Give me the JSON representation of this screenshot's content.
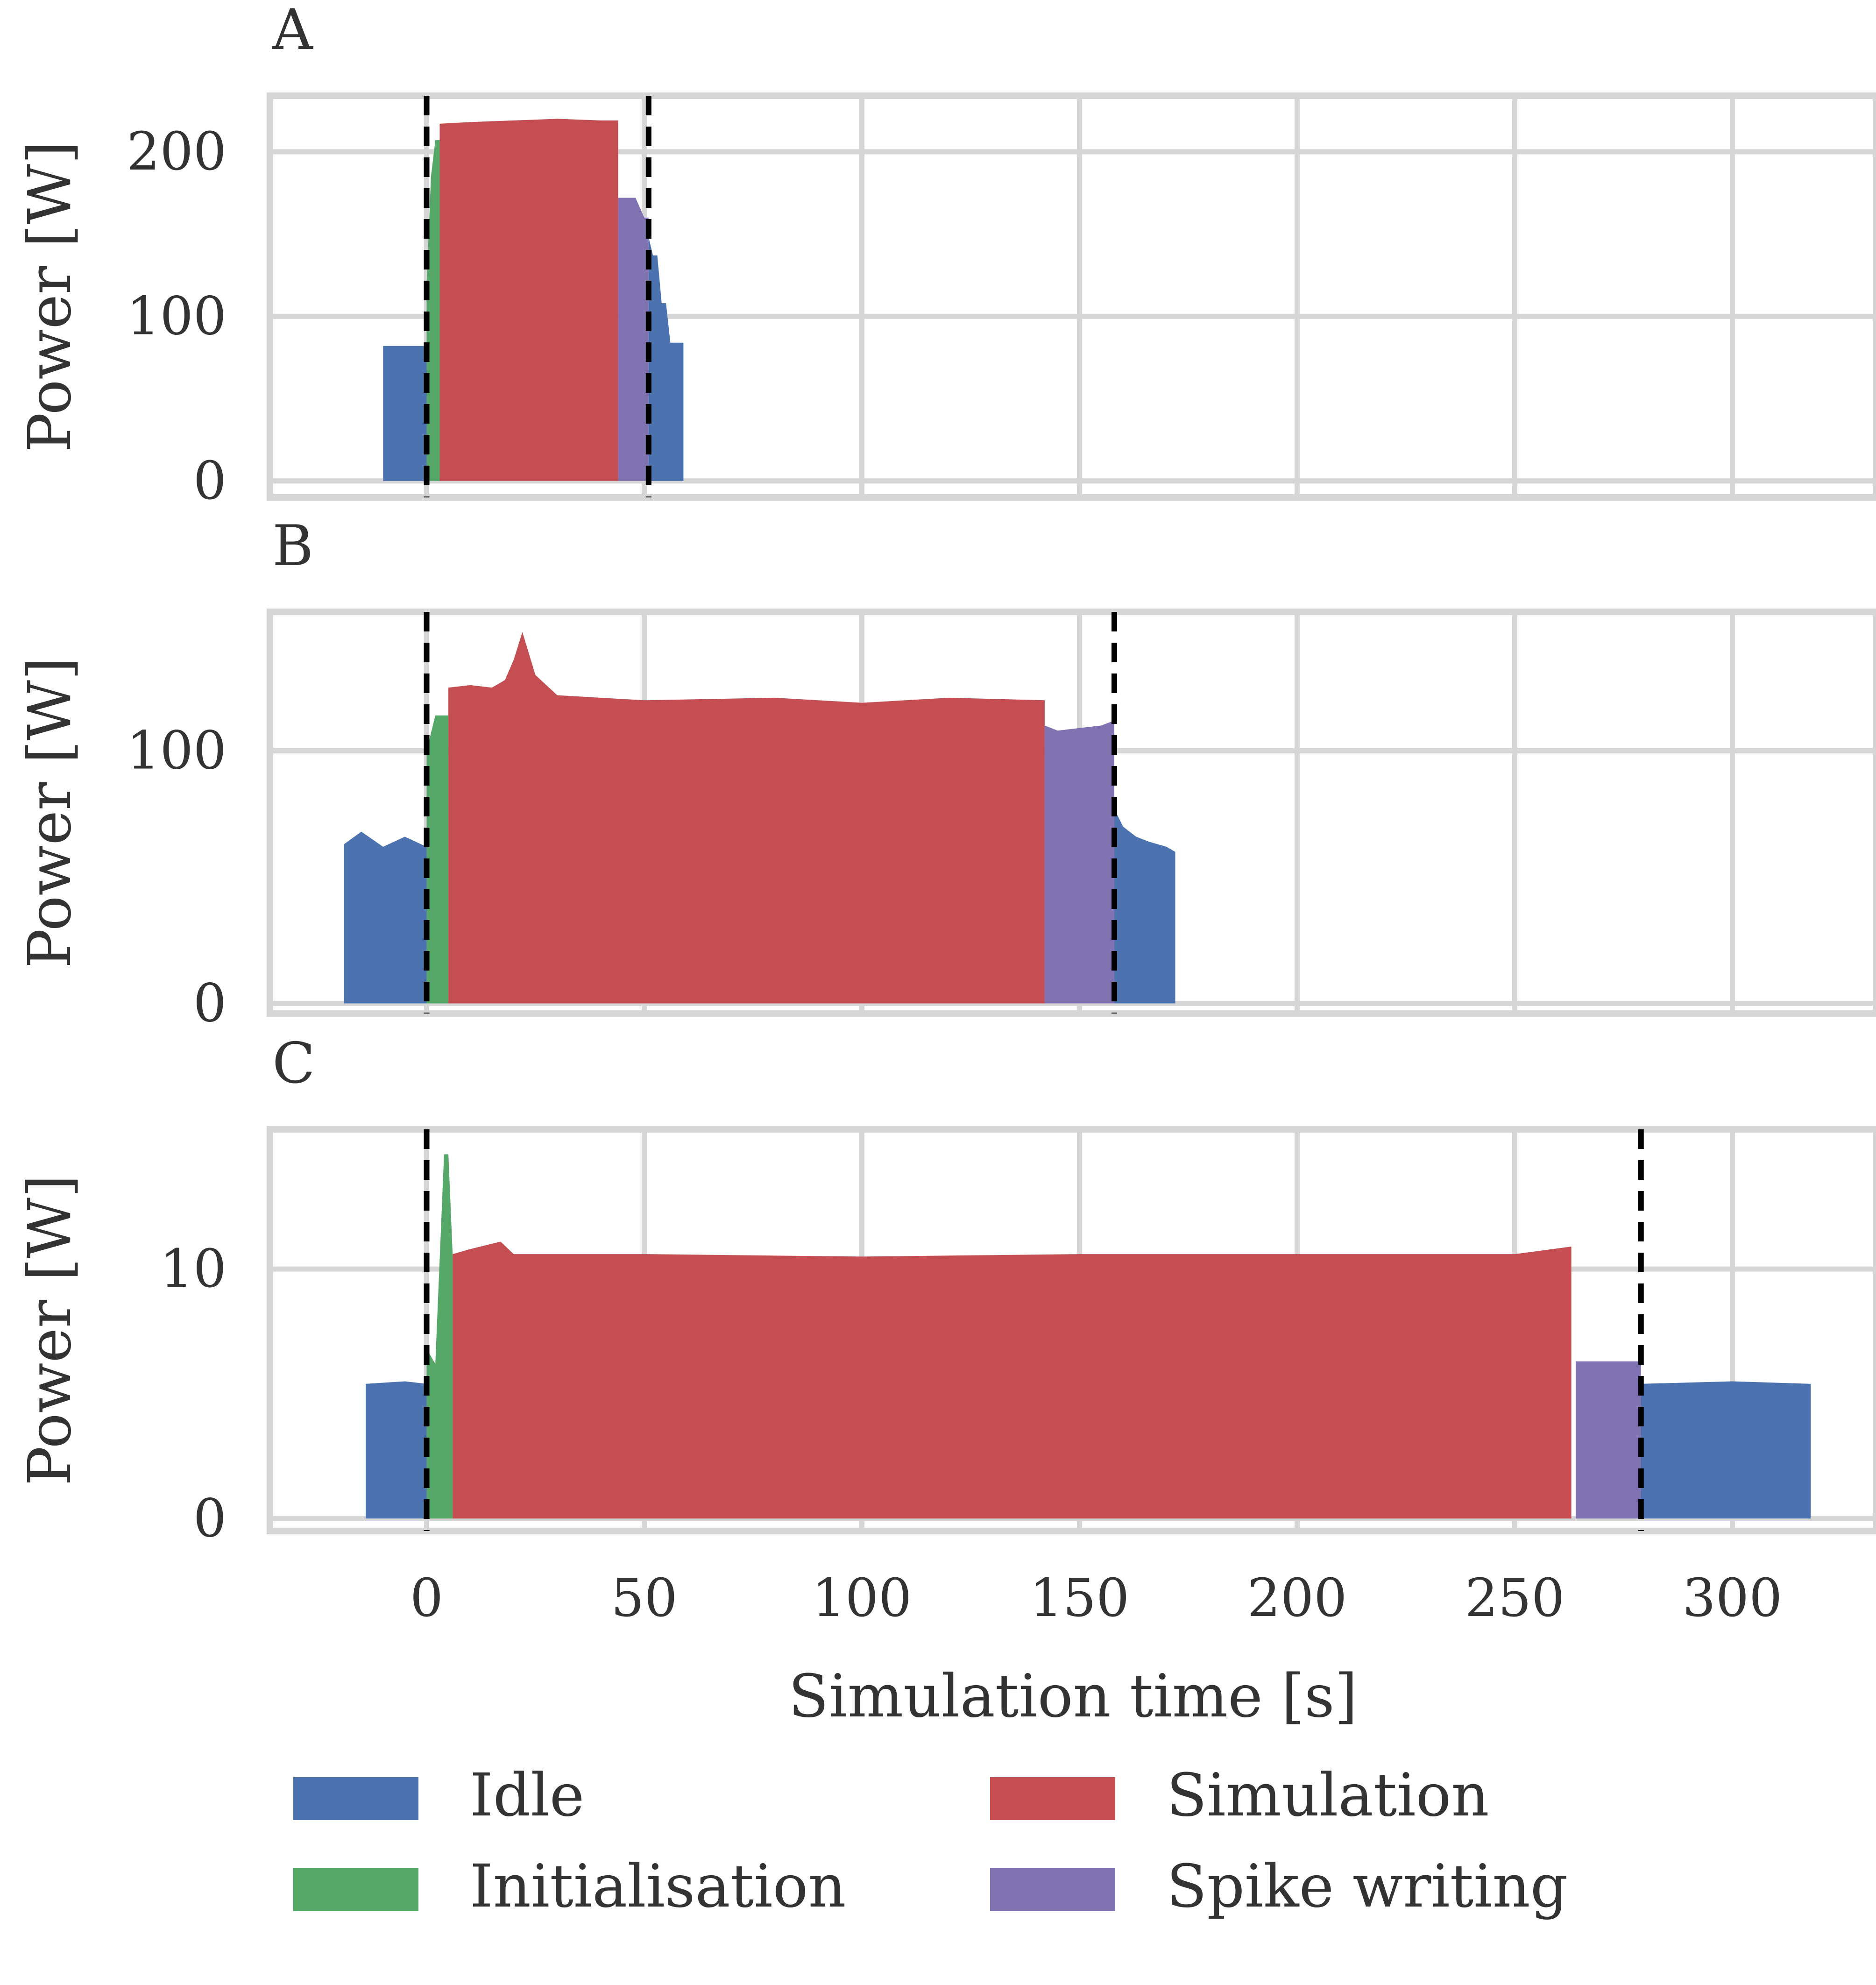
{
  "chart_data": {
    "type": "area",
    "xlabel": "Simulation time [s]",
    "ylabel": "Power [W]",
    "xlim": [
      -36,
      333
    ],
    "xticks": [
      0,
      50,
      100,
      150,
      200,
      250,
      300
    ],
    "grid": true,
    "legend": {
      "placement": "bottom",
      "entries": [
        {
          "name": "Idle",
          "color": "#4c72b0"
        },
        {
          "name": "Simulation",
          "color": "#c44e52"
        },
        {
          "name": "Initialisation",
          "color": "#55a868"
        },
        {
          "name": "Spike writing",
          "color": "#8172b2"
        }
      ]
    },
    "panels": [
      {
        "letter": "A",
        "ylim": [
          -10,
          234
        ],
        "yticks": [
          0,
          100,
          200
        ],
        "vlines": [
          0,
          51
        ],
        "segments": [
          {
            "phase": "Idle",
            "x": [
              -10,
              0
            ],
            "y": [
              82,
              82
            ]
          },
          {
            "phase": "Initialisation",
            "x": [
              0,
              1,
              2,
              3
            ],
            "y": [
              120,
              185,
              207,
              207
            ]
          },
          {
            "phase": "Simulation",
            "x": [
              3,
              10,
              20,
              30,
              40,
              44
            ],
            "y": [
              217,
              218,
              219,
              220,
              219,
              219
            ]
          },
          {
            "phase": "Spike writing",
            "x": [
              44,
              48,
              50,
              51
            ],
            "y": [
              172,
              172,
              160,
              160
            ]
          },
          {
            "phase": "Idle",
            "x": [
              51,
              52,
              53,
              54,
              55,
              56,
              59
            ],
            "y": [
              148,
              137,
              137,
              108,
              108,
              84,
              84
            ]
          }
        ]
      },
      {
        "letter": "B",
        "ylim": [
          -4,
          155
        ],
        "yticks": [
          0,
          100
        ],
        "vlines": [
          0,
          158
        ],
        "segments": [
          {
            "phase": "Idle",
            "x": [
              -19,
              -15,
              -10,
              -5,
              0
            ],
            "y": [
              63,
              68,
              62,
              66,
              62
            ]
          },
          {
            "phase": "Initialisation",
            "x": [
              0,
              2,
              5
            ],
            "y": [
              100,
              114,
              114
            ]
          },
          {
            "phase": "Simulation",
            "x": [
              5,
              10,
              15,
              18,
              20,
              22,
              25,
              30,
              50,
              80,
              100,
              120,
              142
            ],
            "y": [
              125,
              126,
              125,
              128,
              136,
              147,
              130,
              122,
              120,
              121,
              119,
              121,
              120
            ]
          },
          {
            "phase": "Spike writing",
            "x": [
              142,
              145,
              150,
              155,
              158
            ],
            "y": [
              110,
              108,
              109,
              110,
              112
            ]
          },
          {
            "phase": "Idle",
            "x": [
              158,
              160,
              163,
              166,
              170,
              172
            ],
            "y": [
              77,
              70,
              66,
              64,
              62,
              60
            ]
          }
        ]
      },
      {
        "letter": "C",
        "ylim": [
          -0.5,
          15.6
        ],
        "yticks": [
          0,
          10
        ],
        "vlines": [
          0,
          279
        ],
        "segments": [
          {
            "phase": "Idle",
            "x": [
              -14,
              -5,
              0
            ],
            "y": [
              5.4,
              5.5,
              5.4
            ]
          },
          {
            "phase": "Initialisation",
            "x": [
              0,
              2,
              4,
              5,
              6
            ],
            "y": [
              6.8,
              6.2,
              14.6,
              14.6,
              10.5
            ]
          },
          {
            "phase": "Simulation",
            "x": [
              6,
              10,
              17,
              20,
              50,
              100,
              150,
              200,
              250,
              263
            ],
            "y": [
              10.6,
              10.8,
              11.1,
              10.6,
              10.6,
              10.5,
              10.6,
              10.6,
              10.6,
              10.9
            ]
          },
          {
            "phase": "Spike writing",
            "x": [
              264,
              279
            ],
            "y": [
              6.3,
              6.3
            ]
          },
          {
            "phase": "Idle",
            "x": [
              279,
              300,
              318
            ],
            "y": [
              5.4,
              5.5,
              5.4
            ]
          }
        ]
      }
    ]
  }
}
